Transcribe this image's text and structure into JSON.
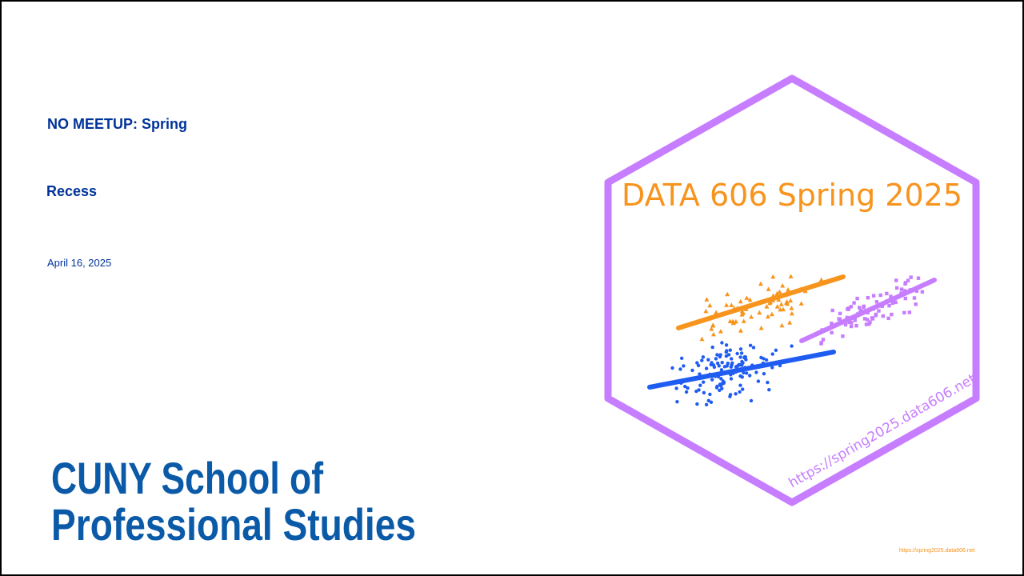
{
  "slide": {
    "title_line_1": "NO MEETUP: Spring",
    "title_line_2": "Recess",
    "date": "April 16, 2025"
  },
  "logo": {
    "line_1": "CUNY School of",
    "line_2": "Professional Studies",
    "color": "#0b5aa8"
  },
  "sticker": {
    "title": "DATA 606 Spring 2025",
    "url": "https://spring2025.data606.net",
    "colors": {
      "hexagon": "#c77dff",
      "orange": "#f7941d",
      "blue": "#1f5cf2",
      "purple": "#c77dff"
    }
  },
  "footer": {
    "url": "https://spring2025.data606.net"
  }
}
